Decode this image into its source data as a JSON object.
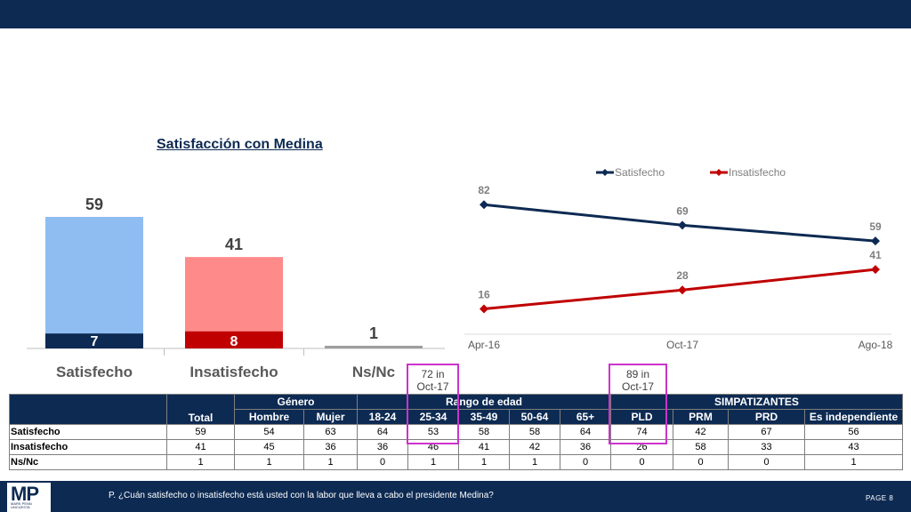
{
  "footer": {
    "question": "P. ¿Cuán satisfecho o insatisfecho está usted con la labor que lleva a cabo el presidente Medina?",
    "page": "PAGE  8",
    "logo_text": "MP",
    "logo_sub": "MARK PENN UNCUESTA"
  },
  "colors": {
    "navy": "#0d2a52",
    "light_blue": "#8fbdf2",
    "light_red": "#ff8a8a",
    "dark_red": "#c00000",
    "gray": "#9e9e9e",
    "callout": "#cc33cc"
  },
  "chart_data": [
    {
      "type": "bar",
      "title": "Satisfacción con Medina",
      "categories": [
        "Satisfecho",
        "Insatisfecho",
        "Ns/Nc"
      ],
      "values": [
        59,
        41,
        1
      ],
      "value_labels": [
        "59",
        "41",
        "1"
      ],
      "inner_values": [
        7,
        8,
        null
      ],
      "inner_labels": [
        "7",
        "8",
        ""
      ],
      "colors": [
        "#8fbdf2",
        "#ff8a8a",
        "#9e9e9e"
      ],
      "inner_colors": [
        "#0d2a52",
        "#c00000",
        ""
      ],
      "ylim": [
        0,
        65
      ]
    },
    {
      "type": "line",
      "categories": [
        "Apr-16",
        "Oct-17",
        "Ago-18"
      ],
      "series": [
        {
          "name": "Satisfecho",
          "values": [
            82,
            69,
            59
          ],
          "labels": [
            "82",
            "69",
            "59"
          ],
          "color": "#0d2a52"
        },
        {
          "name": "Insatisfecho",
          "values": [
            16,
            28,
            41
          ],
          "labels": [
            "16",
            "28",
            "41"
          ],
          "color": "#c00000"
        }
      ],
      "ylim": [
        0,
        90
      ],
      "legend": "top-center"
    },
    {
      "type": "table",
      "group_headers": [
        {
          "label": "Género",
          "span": 2
        },
        {
          "label": "Rango de edad",
          "span": 5
        },
        {
          "label": "SIMPATIZANTES",
          "span": 4
        }
      ],
      "columns": [
        "Total",
        "Hombre",
        "Mujer",
        "18-24",
        "25-34",
        "35-49",
        "50-64",
        "65+",
        "PLD",
        "PRM",
        "PRD",
        "Es independiente"
      ],
      "rows": [
        {
          "label": "Satisfecho",
          "values": [
            "59",
            "54",
            "63",
            "64",
            "53",
            "58",
            "58",
            "64",
            "74",
            "42",
            "67",
            "56"
          ]
        },
        {
          "label": "Insatisfecho",
          "values": [
            "41",
            "45",
            "36",
            "36",
            "46",
            "41",
            "42",
            "36",
            "26",
            "58",
            "33",
            "43"
          ]
        },
        {
          "label": "Ns/Nc",
          "values": [
            "1",
            "1",
            "1",
            "0",
            "1",
            "1",
            "1",
            "0",
            "0",
            "0",
            "0",
            "1"
          ]
        }
      ]
    }
  ],
  "callouts": [
    {
      "text_line1": "72 in",
      "text_line2": "Oct-17"
    },
    {
      "text_line1": "89 in",
      "text_line2": "Oct-17"
    }
  ]
}
